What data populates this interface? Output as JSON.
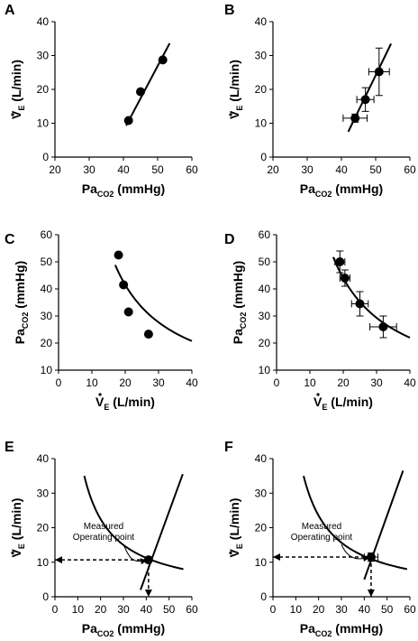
{
  "colors": {
    "ink": "#000000",
    "background": "#ffffff"
  },
  "chart_data": [
    {
      "panel": "A",
      "type": "scatter",
      "xlabel": "Pa",
      "xlabel_sub": "CO2",
      "xlabel_unit": " (mmHg)",
      "ylabel": "V",
      "ylabel_sub": "E",
      "ylabel_unit": " (L/min)",
      "ylabel_dot": true,
      "xlim": [
        20,
        60
      ],
      "ylim": [
        0,
        40
      ],
      "xticks": [
        20,
        30,
        40,
        50,
        60
      ],
      "yticks": [
        0,
        10,
        20,
        30,
        40
      ],
      "points": [
        {
          "x": 41.5,
          "y": 10.8
        },
        {
          "x": 45,
          "y": 19.3
        },
        {
          "x": 51.5,
          "y": 28.7
        }
      ],
      "fit_line": {
        "kind": "linear",
        "from": [
          40.8,
          9.3
        ],
        "to": [
          53.5,
          33.6
        ]
      },
      "grid": false
    },
    {
      "panel": "B",
      "type": "scatter",
      "xlabel": "Pa",
      "xlabel_sub": "CO2",
      "xlabel_unit": " (mmHg)",
      "ylabel": "V",
      "ylabel_sub": "E",
      "ylabel_unit": " (L/min)",
      "ylabel_dot": true,
      "xlim": [
        20,
        60
      ],
      "ylim": [
        0,
        40
      ],
      "xticks": [
        20,
        30,
        40,
        50,
        60
      ],
      "yticks": [
        0,
        10,
        20,
        30,
        40
      ],
      "points": [
        {
          "x": 44,
          "y": 11.5,
          "xerr": 3.5,
          "yerr": 1.2
        },
        {
          "x": 47,
          "y": 17,
          "xerr": 2.5,
          "yerr": 3.5
        },
        {
          "x": 51,
          "y": 25.2,
          "xerr": 3.0,
          "yerr": 7.0
        }
      ],
      "fit_line": {
        "kind": "linear",
        "from": [
          42,
          7.5
        ],
        "to": [
          54.5,
          33.5
        ]
      },
      "grid": false
    },
    {
      "panel": "C",
      "type": "scatter",
      "xlabel": "V",
      "xlabel_sub": "E",
      "xlabel_unit": " (L/min)",
      "xlabel_dot": true,
      "ylabel": "Pa",
      "ylabel_sub": "CO2",
      "ylabel_unit": " (mmHg)",
      "xlim": [
        0,
        40
      ],
      "ylim": [
        10,
        60
      ],
      "xticks": [
        0,
        10,
        20,
        30,
        40
      ],
      "yticks": [
        10,
        20,
        30,
        40,
        50,
        60
      ],
      "points": [
        {
          "x": 18,
          "y": 52.5
        },
        {
          "x": 19.5,
          "y": 41.5
        },
        {
          "x": 21,
          "y": 31.5
        },
        {
          "x": 27,
          "y": 23.3
        }
      ],
      "fit_curve": {
        "kind": "hyperbola",
        "k": 830,
        "x_from": 17,
        "x_to": 40
      },
      "grid": false
    },
    {
      "panel": "D",
      "type": "scatter",
      "xlabel": "V",
      "xlabel_sub": "E",
      "xlabel_unit": " (L/min)",
      "xlabel_dot": true,
      "ylabel": "Pa",
      "ylabel_sub": "CO2",
      "ylabel_unit": " (mmHg)",
      "xlim": [
        0,
        40
      ],
      "ylim": [
        10,
        60
      ],
      "xticks": [
        0,
        10,
        20,
        30,
        40
      ],
      "yticks": [
        10,
        20,
        30,
        40,
        50,
        60
      ],
      "points": [
        {
          "x": 19,
          "y": 50,
          "xerr": 1.5,
          "yerr": 4
        },
        {
          "x": 20.5,
          "y": 44,
          "xerr": 1.5,
          "yerr": 3
        },
        {
          "x": 25,
          "y": 34.5,
          "xerr": 2.5,
          "yerr": 4.5
        },
        {
          "x": 32,
          "y": 26,
          "xerr": 4,
          "yerr": 4
        }
      ],
      "fit_curve": {
        "kind": "hyperbola",
        "k": 880,
        "x_from": 17,
        "x_to": 40
      },
      "grid": false
    },
    {
      "panel": "E",
      "type": "line",
      "xlabel": "Pa",
      "xlabel_sub": "CO2",
      "xlabel_unit": " (mmHg)",
      "ylabel": "V",
      "ylabel_sub": "E",
      "ylabel_unit": " (L/min)",
      "ylabel_dot": true,
      "xlim": [
        0,
        60
      ],
      "ylim": [
        0,
        40
      ],
      "xticks": [
        0,
        10,
        20,
        30,
        40,
        50,
        60
      ],
      "yticks": [
        0,
        10,
        20,
        30,
        40
      ],
      "points": [
        {
          "x": 41,
          "y": 10.7
        }
      ],
      "fit_line": {
        "kind": "linear",
        "from": [
          37.5,
          2
        ],
        "to": [
          56,
          35.5
        ]
      },
      "fit_curve": {
        "kind": "hyperbola",
        "k": 450,
        "y_from": 8,
        "y_to": 35
      },
      "operating_point": {
        "x": 41,
        "y": 10.7
      },
      "annotation": [
        "Measured",
        "Operating point"
      ],
      "grid": false
    },
    {
      "panel": "F",
      "type": "line",
      "xlabel": "Pa",
      "xlabel_sub": "CO2",
      "xlabel_unit": " (mmHg)",
      "ylabel": "V",
      "ylabel_sub": "E",
      "ylabel_unit": " (L/min)",
      "ylabel_dot": true,
      "xlim": [
        0,
        60
      ],
      "ylim": [
        0,
        40
      ],
      "xticks": [
        0,
        10,
        20,
        30,
        40,
        50,
        60
      ],
      "yticks": [
        0,
        10,
        20,
        30,
        40
      ],
      "points": [
        {
          "x": 43,
          "y": 11.5,
          "xerr": 3,
          "yerr": 1.2
        }
      ],
      "fit_line": {
        "kind": "linear",
        "from": [
          40,
          5
        ],
        "to": [
          57,
          36.5
        ]
      },
      "fit_curve": {
        "kind": "hyperbola",
        "k": 470,
        "y_from": 8,
        "y_to": 35
      },
      "operating_point": {
        "x": 43,
        "y": 11.5
      },
      "annotation": [
        "Measured",
        "Operating point"
      ],
      "grid": false
    }
  ]
}
